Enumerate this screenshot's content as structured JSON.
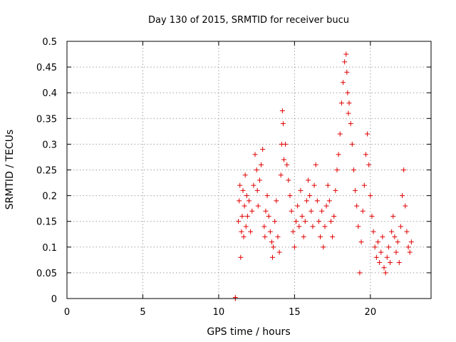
{
  "chart_data": {
    "type": "scatter",
    "title": "Day 130 of 2015, SRMTID for receiver bucu",
    "xlabel": "GPS time / hours",
    "ylabel": "SRMTID / TECUs",
    "xlim": [
      0,
      24
    ],
    "ylim": [
      0,
      0.5
    ],
    "xticks": [
      0,
      5,
      10,
      15,
      20
    ],
    "xtick_labels": [
      "0",
      "5",
      "10",
      "15",
      "20"
    ],
    "yticks": [
      0,
      0.05,
      0.1,
      0.15,
      0.2,
      0.25,
      0.3,
      0.35,
      0.4,
      0.45,
      0.5
    ],
    "ytick_labels": [
      "0",
      "0.05",
      "0.1",
      "0.15",
      "0.2",
      "0.25",
      "0.3",
      "0.35",
      "0.4",
      "0.45",
      "0.5"
    ],
    "grid": true,
    "marker": "+",
    "color": "#e00000",
    "series": [
      {
        "name": "SRMTID",
        "points": [
          [
            11.1,
            0.0
          ],
          [
            11.1,
            0.002
          ],
          [
            11.3,
            0.15
          ],
          [
            11.35,
            0.19
          ],
          [
            11.4,
            0.22
          ],
          [
            11.45,
            0.08
          ],
          [
            11.5,
            0.13
          ],
          [
            11.55,
            0.16
          ],
          [
            11.6,
            0.21
          ],
          [
            11.65,
            0.12
          ],
          [
            11.7,
            0.18
          ],
          [
            11.75,
            0.24
          ],
          [
            11.8,
            0.14
          ],
          [
            11.85,
            0.2
          ],
          [
            11.9,
            0.16
          ],
          [
            12.0,
            0.19
          ],
          [
            12.1,
            0.13
          ],
          [
            12.2,
            0.17
          ],
          [
            12.3,
            0.22
          ],
          [
            12.4,
            0.28
          ],
          [
            12.5,
            0.25
          ],
          [
            12.55,
            0.21
          ],
          [
            12.6,
            0.18
          ],
          [
            12.7,
            0.23
          ],
          [
            12.8,
            0.26
          ],
          [
            12.9,
            0.29
          ],
          [
            13.0,
            0.14
          ],
          [
            13.05,
            0.12
          ],
          [
            13.1,
            0.17
          ],
          [
            13.2,
            0.2
          ],
          [
            13.3,
            0.16
          ],
          [
            13.4,
            0.13
          ],
          [
            13.5,
            0.11
          ],
          [
            13.55,
            0.08
          ],
          [
            13.6,
            0.1
          ],
          [
            13.7,
            0.15
          ],
          [
            13.8,
            0.19
          ],
          [
            13.9,
            0.12
          ],
          [
            14.0,
            0.09
          ],
          [
            14.1,
            0.24
          ],
          [
            14.15,
            0.3
          ],
          [
            14.2,
            0.365
          ],
          [
            14.25,
            0.34
          ],
          [
            14.3,
            0.27
          ],
          [
            14.4,
            0.3
          ],
          [
            14.5,
            0.26
          ],
          [
            14.6,
            0.23
          ],
          [
            14.7,
            0.2
          ],
          [
            14.8,
            0.17
          ],
          [
            14.9,
            0.13
          ],
          [
            15.0,
            0.1
          ],
          [
            15.1,
            0.15
          ],
          [
            15.2,
            0.18
          ],
          [
            15.3,
            0.14
          ],
          [
            15.4,
            0.21
          ],
          [
            15.5,
            0.16
          ],
          [
            15.6,
            0.12
          ],
          [
            15.7,
            0.15
          ],
          [
            15.8,
            0.19
          ],
          [
            15.9,
            0.23
          ],
          [
            16.0,
            0.2
          ],
          [
            16.1,
            0.17
          ],
          [
            16.2,
            0.14
          ],
          [
            16.3,
            0.22
          ],
          [
            16.4,
            0.26
          ],
          [
            16.5,
            0.19
          ],
          [
            16.6,
            0.15
          ],
          [
            16.7,
            0.12
          ],
          [
            16.8,
            0.17
          ],
          [
            16.9,
            0.1
          ],
          [
            17.0,
            0.14
          ],
          [
            17.1,
            0.18
          ],
          [
            17.2,
            0.22
          ],
          [
            17.3,
            0.19
          ],
          [
            17.4,
            0.15
          ],
          [
            17.5,
            0.12
          ],
          [
            17.6,
            0.16
          ],
          [
            17.7,
            0.21
          ],
          [
            17.8,
            0.25
          ],
          [
            17.9,
            0.28
          ],
          [
            18.0,
            0.32
          ],
          [
            18.1,
            0.38
          ],
          [
            18.2,
            0.42
          ],
          [
            18.3,
            0.46
          ],
          [
            18.4,
            0.475
          ],
          [
            18.45,
            0.44
          ],
          [
            18.5,
            0.4
          ],
          [
            18.55,
            0.36
          ],
          [
            18.6,
            0.38
          ],
          [
            18.7,
            0.34
          ],
          [
            18.8,
            0.3
          ],
          [
            18.9,
            0.25
          ],
          [
            19.0,
            0.21
          ],
          [
            19.1,
            0.18
          ],
          [
            19.2,
            0.14
          ],
          [
            19.3,
            0.05
          ],
          [
            19.4,
            0.11
          ],
          [
            19.5,
            0.17
          ],
          [
            19.6,
            0.22
          ],
          [
            19.7,
            0.28
          ],
          [
            19.8,
            0.32
          ],
          [
            19.9,
            0.26
          ],
          [
            20.0,
            0.2
          ],
          [
            20.1,
            0.16
          ],
          [
            20.2,
            0.13
          ],
          [
            20.3,
            0.1
          ],
          [
            20.4,
            0.08
          ],
          [
            20.5,
            0.11
          ],
          [
            20.6,
            0.07
          ],
          [
            20.7,
            0.09
          ],
          [
            20.8,
            0.12
          ],
          [
            20.9,
            0.06
          ],
          [
            21.0,
            0.05
          ],
          [
            21.1,
            0.08
          ],
          [
            21.2,
            0.1
          ],
          [
            21.3,
            0.07
          ],
          [
            21.4,
            0.13
          ],
          [
            21.5,
            0.16
          ],
          [
            21.6,
            0.12
          ],
          [
            21.7,
            0.09
          ],
          [
            21.8,
            0.11
          ],
          [
            21.9,
            0.07
          ],
          [
            22.0,
            0.14
          ],
          [
            22.1,
            0.2
          ],
          [
            22.2,
            0.25
          ],
          [
            22.3,
            0.18
          ],
          [
            22.4,
            0.13
          ],
          [
            22.5,
            0.1
          ],
          [
            22.6,
            0.09
          ],
          [
            22.7,
            0.11
          ]
        ]
      }
    ]
  }
}
